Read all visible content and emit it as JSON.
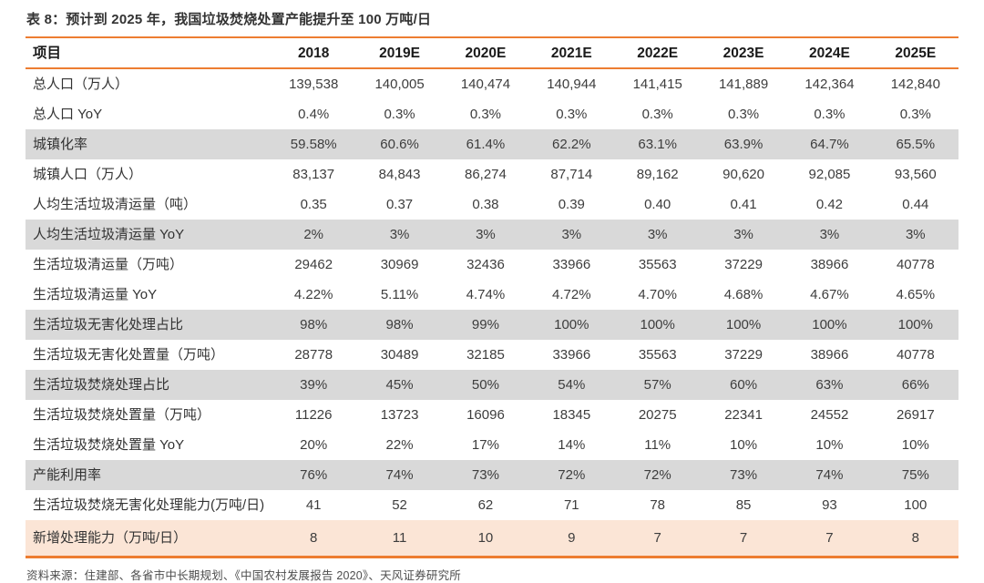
{
  "title": "表 8：预计到 2025 年，我国垃圾焚烧处置产能提升至 100 万吨/日",
  "source": "资料来源：住建部、各省市中长期规划、《中国农村发展报告 2020》、天风证券研究所",
  "colors": {
    "accent_orange": "#ED7D31",
    "row_gray": "#D9D9D9",
    "row_peach": "#FBE5D6",
    "title_text": "#333333",
    "cell_text": "#3D3D3D"
  },
  "chart_data": {
    "type": "table",
    "title": "表 8：预计到 2025 年，我国垃圾焚烧处置产能提升至 100 万吨/日",
    "columns": [
      "项目",
      "2018",
      "2019E",
      "2020E",
      "2021E",
      "2022E",
      "2023E",
      "2024E",
      "2025E"
    ],
    "rows": [
      {
        "label": "总人口（万人）",
        "shade": "white",
        "values": [
          "139,538",
          "140,005",
          "140,474",
          "140,944",
          "141,415",
          "141,889",
          "142,364",
          "142,840"
        ]
      },
      {
        "label": "总人口 YoY",
        "shade": "white",
        "values": [
          "0.4%",
          "0.3%",
          "0.3%",
          "0.3%",
          "0.3%",
          "0.3%",
          "0.3%",
          "0.3%"
        ]
      },
      {
        "label": "城镇化率",
        "shade": "gray",
        "values": [
          "59.58%",
          "60.6%",
          "61.4%",
          "62.2%",
          "63.1%",
          "63.9%",
          "64.7%",
          "65.5%"
        ]
      },
      {
        "label": "城镇人口（万人）",
        "shade": "white",
        "values": [
          "83,137",
          "84,843",
          "86,274",
          "87,714",
          "89,162",
          "90,620",
          "92,085",
          "93,560"
        ]
      },
      {
        "label": "人均生活垃圾清运量（吨）",
        "shade": "white",
        "values": [
          "0.35",
          "0.37",
          "0.38",
          "0.39",
          "0.40",
          "0.41",
          "0.42",
          "0.44"
        ]
      },
      {
        "label": "人均生活垃圾清运量  YoY",
        "shade": "gray",
        "values": [
          "2%",
          "3%",
          "3%",
          "3%",
          "3%",
          "3%",
          "3%",
          "3%"
        ]
      },
      {
        "label": "生活垃圾清运量（万吨）",
        "shade": "white",
        "values": [
          "29462",
          "30969",
          "32436",
          "33966",
          "35563",
          "37229",
          "38966",
          "40778"
        ]
      },
      {
        "label": "生活垃圾清运量 YoY",
        "shade": "white",
        "values": [
          "4.22%",
          "5.11%",
          "4.74%",
          "4.72%",
          "4.70%",
          "4.68%",
          "4.67%",
          "4.65%"
        ]
      },
      {
        "label": "生活垃圾无害化处理占比",
        "shade": "gray",
        "values": [
          "98%",
          "98%",
          "99%",
          "100%",
          "100%",
          "100%",
          "100%",
          "100%"
        ]
      },
      {
        "label": "生活垃圾无害化处置量（万吨）",
        "shade": "white",
        "values": [
          "28778",
          "30489",
          "32185",
          "33966",
          "35563",
          "37229",
          "38966",
          "40778"
        ]
      },
      {
        "label": "生活垃圾焚烧处理占比",
        "shade": "gray",
        "values": [
          "39%",
          "45%",
          "50%",
          "54%",
          "57%",
          "60%",
          "63%",
          "66%"
        ]
      },
      {
        "label": "生活垃圾焚烧处置量（万吨）",
        "shade": "white",
        "values": [
          "11226",
          "13723",
          "16096",
          "18345",
          "20275",
          "22341",
          "24552",
          "26917"
        ]
      },
      {
        "label": "生活垃圾焚烧处置量 YoY",
        "shade": "white",
        "values": [
          "20%",
          "22%",
          "17%",
          "14%",
          "11%",
          "10%",
          "10%",
          "10%"
        ]
      },
      {
        "label": "产能利用率",
        "shade": "gray",
        "values": [
          "76%",
          "74%",
          "73%",
          "72%",
          "72%",
          "73%",
          "74%",
          "75%"
        ]
      },
      {
        "label": "生活垃圾焚烧无害化处理能力(万吨/日)",
        "shade": "white",
        "values": [
          "41",
          "52",
          "62",
          "71",
          "78",
          "85",
          "93",
          "100"
        ]
      },
      {
        "label": "新增处理能力（万吨/日）",
        "shade": "peach",
        "values": [
          "8",
          "11",
          "10",
          "9",
          "7",
          "7",
          "7",
          "8"
        ]
      }
    ]
  }
}
